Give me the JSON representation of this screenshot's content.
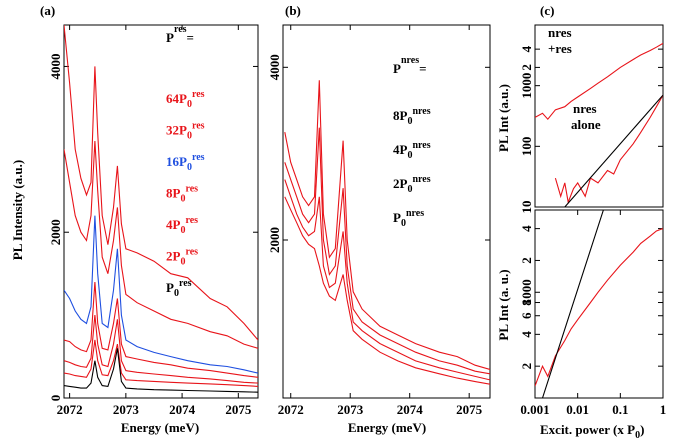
{
  "chart_data": [
    {
      "type": "line",
      "panel_label": "(a)",
      "ylabel": "PL Intensity (a.u.)",
      "xlabel": "Energy (meV)",
      "xlim": [
        2071.9,
        2075.35
      ],
      "xticks": [
        2072,
        2073,
        2074,
        2075
      ],
      "ylim": [
        0,
        4500
      ],
      "yticks": [
        0,
        2000,
        4000
      ],
      "legend_title": {
        "text": "P",
        "sup": "res",
        "after": "="
      },
      "x": [
        2071.9,
        2072.0,
        2072.1,
        2072.2,
        2072.3,
        2072.38,
        2072.45,
        2072.5,
        2072.58,
        2072.68,
        2072.78,
        2072.85,
        2072.92,
        2073.0,
        2073.2,
        2073.5,
        2073.8,
        2074.1,
        2074.5,
        2074.8,
        2075.1,
        2075.35
      ],
      "series": [
        {
          "label": {
            "text": "64P",
            "sub": "0",
            "sup": "res"
          },
          "color": "#e8141a",
          "values": [
            4500,
            3800,
            3000,
            2650,
            2450,
            2600,
            4000,
            3200,
            2200,
            1850,
            2300,
            2800,
            2100,
            1800,
            1750,
            1650,
            1500,
            1450,
            1200,
            1100,
            900,
            700
          ]
        },
        {
          "label": {
            "text": "32P",
            "sub": "0",
            "sup": "res"
          },
          "color": "#e8141a",
          "values": [
            3000,
            2600,
            2200,
            2000,
            1900,
            2200,
            3100,
            2500,
            1700,
            1500,
            1900,
            2300,
            1600,
            1250,
            1150,
            1050,
            950,
            900,
            800,
            750,
            650,
            600
          ]
        },
        {
          "label": {
            "text": "16P",
            "sub": "0",
            "sup": "res"
          },
          "color": "#1f4fe0",
          "values": [
            1300,
            1200,
            1050,
            950,
            900,
            1100,
            2200,
            1500,
            900,
            850,
            1300,
            1800,
            1000,
            700,
            620,
            550,
            500,
            450,
            400,
            380,
            340,
            300
          ]
        },
        {
          "label": {
            "text": "8P",
            "sub": "0",
            "sup": "res"
          },
          "color": "#e8141a",
          "values": [
            700,
            680,
            620,
            580,
            560,
            700,
            1400,
            900,
            600,
            580,
            900,
            1200,
            650,
            500,
            470,
            430,
            400,
            360,
            330,
            300,
            270,
            250
          ]
        },
        {
          "label": {
            "text": "4P",
            "sub": "0",
            "sup": "res"
          },
          "color": "#e8141a",
          "values": [
            450,
            430,
            400,
            380,
            370,
            480,
            1000,
            650,
            400,
            380,
            650,
            950,
            450,
            330,
            310,
            290,
            270,
            250,
            230,
            210,
            190,
            180
          ]
        },
        {
          "label": {
            "text": "2P",
            "sub": "0",
            "sup": "res"
          },
          "color": "#e8141a",
          "values": [
            300,
            290,
            270,
            260,
            250,
            350,
            700,
            450,
            280,
            270,
            450,
            650,
            300,
            220,
            210,
            200,
            190,
            180,
            170,
            160,
            150,
            140
          ]
        },
        {
          "label": {
            "text": "P",
            "sub": "0",
            "sup": "res"
          },
          "color": "#000000",
          "values": [
            150,
            140,
            130,
            120,
            120,
            180,
            450,
            250,
            150,
            140,
            350,
            600,
            200,
            120,
            110,
            100,
            95,
            90,
            85,
            80,
            75,
            70
          ]
        }
      ]
    },
    {
      "type": "line",
      "panel_label": "(b)",
      "xlabel": "Energy (meV)",
      "xlim": [
        2071.87,
        2075.35
      ],
      "xticks": [
        2072,
        2073,
        2074,
        2075
      ],
      "ylim": [
        170,
        4490
      ],
      "yticks": [
        2000,
        4000
      ],
      "legend_title": {
        "text": "P",
        "sup": "nres",
        "after": "="
      },
      "legend_text_color": "#000000",
      "x": [
        2071.9,
        2072.0,
        2072.1,
        2072.2,
        2072.3,
        2072.4,
        2072.48,
        2072.55,
        2072.65,
        2072.75,
        2072.88,
        2072.95,
        2073.05,
        2073.2,
        2073.5,
        2073.8,
        2074.1,
        2074.5,
        2074.8,
        2075.1,
        2075.35
      ],
      "series": [
        {
          "label": {
            "text": "8P",
            "sub": "0",
            "sup": "nres"
          },
          "color": "#e8141a",
          "values": [
            3250,
            2900,
            2700,
            2500,
            2400,
            2500,
            3850,
            2300,
            1800,
            1900,
            3150,
            2000,
            1400,
            1200,
            1000,
            900,
            800,
            700,
            650,
            550,
            500
          ]
        },
        {
          "label": {
            "text": "4P",
            "sub": "0",
            "sup": "nres"
          },
          "color": "#e8141a",
          "values": [
            2900,
            2700,
            2500,
            2300,
            2200,
            2300,
            3300,
            2000,
            1600,
            1700,
            2600,
            1700,
            1200,
            1050,
            900,
            800,
            700,
            600,
            550,
            480,
            450
          ]
        },
        {
          "label": {
            "text": "2P",
            "sub": "0",
            "sup": "nres"
          },
          "color": "#e8141a",
          "values": [
            2700,
            2500,
            2300,
            2150,
            2050,
            2100,
            2500,
            1700,
            1450,
            1500,
            2100,
            1500,
            1050,
            950,
            800,
            700,
            600,
            520,
            470,
            420,
            380
          ]
        },
        {
          "label": {
            "text": "P",
            "sub": "0",
            "sup": "nres"
          },
          "color": "#e8141a",
          "values": [
            2500,
            2350,
            2200,
            2050,
            1950,
            1900,
            1700,
            1500,
            1350,
            1300,
            1600,
            1300,
            950,
            850,
            700,
            600,
            520,
            450,
            400,
            360,
            330
          ]
        }
      ]
    },
    {
      "type": "line",
      "panel_label": "(c)",
      "ylabel": "PL Int (a.u.)",
      "xscale": "log",
      "yscale": "log",
      "xlim": [
        0.001,
        1
      ],
      "ylim": [
        10,
        10000
      ],
      "yticks": [
        10,
        100,
        1000,
        {
          "value": 2000,
          "label": "2"
        },
        {
          "value": 4000,
          "label": "4"
        }
      ],
      "annotations": [
        "nres",
        "+res",
        "nres",
        "alone"
      ],
      "series": [
        {
          "color": "#e8141a",
          "x": [
            0.001,
            0.0015,
            0.002,
            0.003,
            0.005,
            0.007,
            0.01,
            0.02,
            0.03,
            0.05,
            0.1,
            0.2,
            0.3,
            0.5,
            0.7,
            1
          ],
          "values": [
            300,
            350,
            280,
            400,
            450,
            550,
            650,
            900,
            1100,
            1400,
            2000,
            2700,
            3200,
            3800,
            4300,
            5000
          ]
        },
        {
          "color": "#e8141a",
          "x": [
            0.003,
            0.004,
            0.005,
            0.006,
            0.008,
            0.01,
            0.015,
            0.02,
            0.03,
            0.05,
            0.07,
            0.1,
            0.2,
            0.3,
            0.5,
            0.7,
            1
          ],
          "values": [
            30,
            15,
            25,
            12,
            20,
            25,
            15,
            30,
            25,
            40,
            35,
            60,
            110,
            170,
            300,
            450,
            700
          ]
        },
        {
          "color": "#000000",
          "x": [
            0.005,
            1
          ],
          "values": [
            10,
            700
          ]
        }
      ]
    },
    {
      "type": "line",
      "ylabel": "PL Int (a. u.)",
      "xlabel": {
        "text": "Excit. power (x P",
        "sub": "0",
        "after": ")"
      },
      "xscale": "log",
      "yscale": "log",
      "xlim": [
        0.001,
        1
      ],
      "ylim": [
        100,
        6000
      ],
      "xticks": [
        0.001,
        0.01,
        0.1,
        1
      ],
      "yticks": [
        {
          "value": 200,
          "label": "2"
        },
        {
          "value": 400,
          "label": "4"
        },
        {
          "value": 600,
          "label": "6"
        },
        {
          "value": 800,
          "label": "8"
        },
        1000,
        {
          "value": 2000,
          "label": "2"
        },
        {
          "value": 4000,
          "label": "4"
        }
      ],
      "series": [
        {
          "color": "#e8141a",
          "x": [
            0.001,
            0.0015,
            0.002,
            0.003,
            0.005,
            0.007,
            0.01,
            0.02,
            0.03,
            0.05,
            0.1,
            0.2,
            0.3,
            0.5,
            0.7,
            1
          ],
          "values": [
            130,
            200,
            160,
            250,
            350,
            450,
            550,
            800,
            1000,
            1300,
            1800,
            2400,
            2900,
            3400,
            3800,
            4000
          ]
        },
        {
          "color": "#000000",
          "x": [
            0.0015,
            0.04
          ],
          "values": [
            100,
            6000
          ]
        }
      ]
    }
  ]
}
